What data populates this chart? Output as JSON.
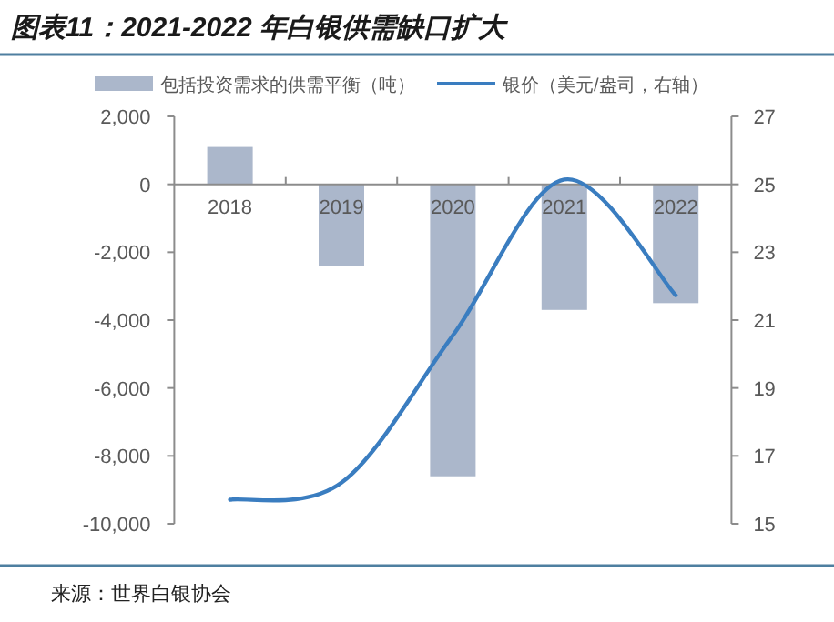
{
  "chart_data": {
    "type": "bar",
    "title": "图表11：2021-2022 年白银供需缺口扩大",
    "annotations": [
      "来源：世界白银协会"
    ],
    "categories": [
      "2018",
      "2019",
      "2020",
      "2021",
      "2022"
    ],
    "series": [
      {
        "name": "包括投资需求的供需平衡（吨）",
        "color": "#abb7cb",
        "values": [
          1100,
          -2400,
          -8600,
          -3700,
          -3500
        ]
      },
      {
        "name": "银价（美元/盎司，右轴）",
        "type": "line",
        "axis": "y2",
        "color": "#3a7dc0",
        "values": [
          15.71,
          16.21,
          20.55,
          25.14,
          21.73
        ]
      }
    ],
    "ylim": [
      -10000,
      2000
    ],
    "yticks": [
      {
        "value": -10000,
        "label": "-10,000"
      },
      {
        "value": -8000,
        "label": "-8,000"
      },
      {
        "value": -6000,
        "label": "-6,000"
      },
      {
        "value": -4000,
        "label": "-4,000"
      },
      {
        "value": -2000,
        "label": "-2,000"
      },
      0,
      {
        "value": 2000,
        "label": "2,000"
      }
    ],
    "y2lim": [
      15,
      27
    ],
    "y2ticks": [
      15,
      17,
      19,
      21,
      23,
      25,
      27
    ],
    "legend": "top",
    "grid": false,
    "marker": "none"
  }
}
